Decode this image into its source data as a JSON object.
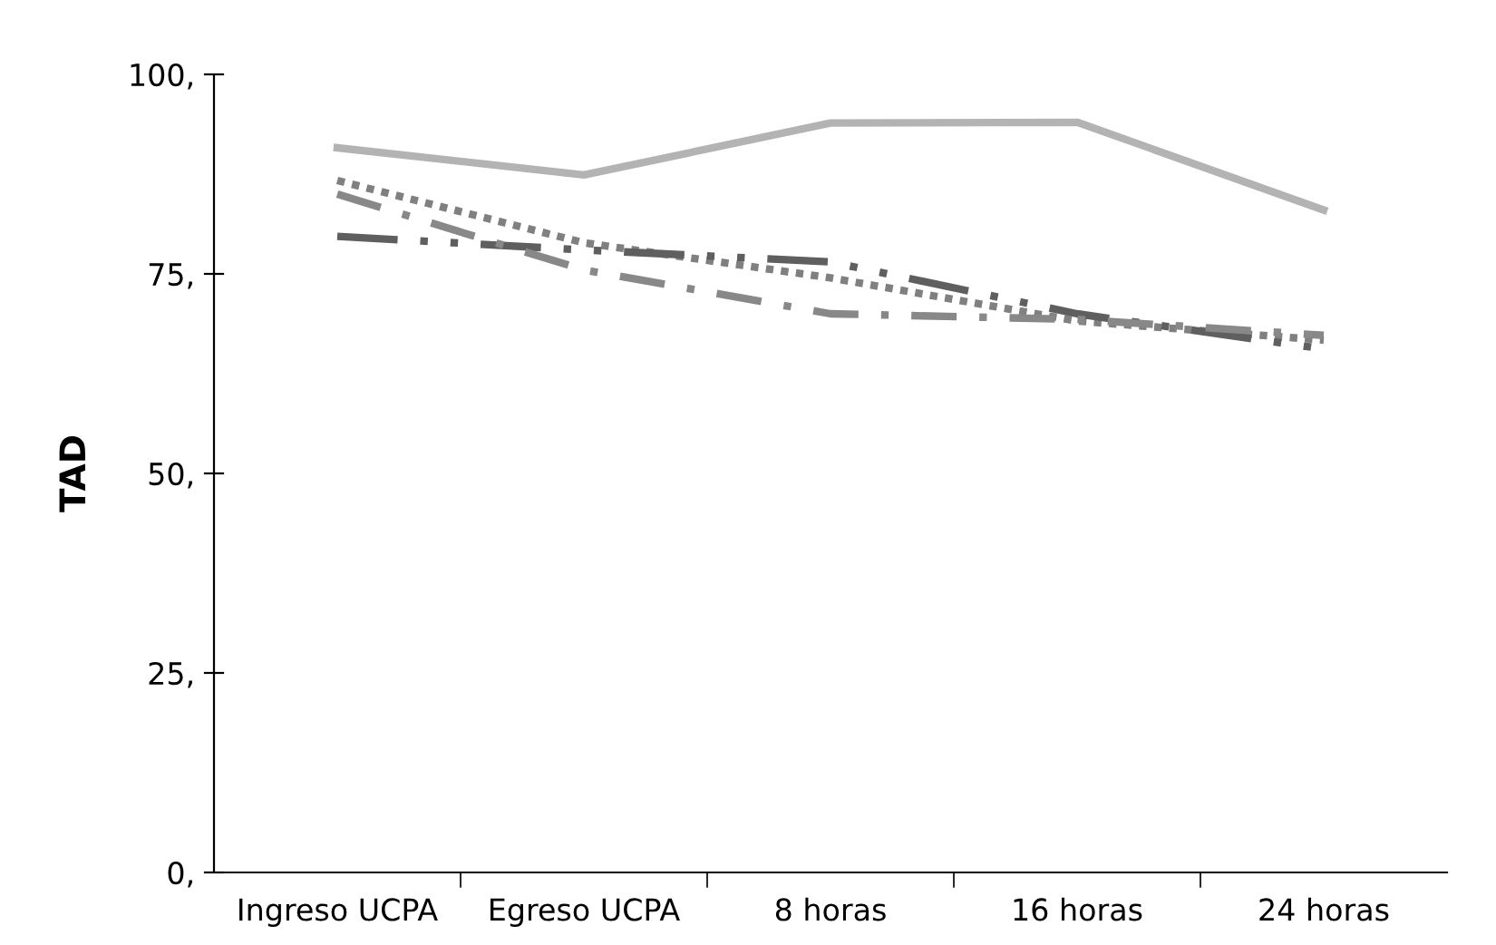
{
  "chart_data": {
    "type": "line",
    "ylabel": "TAD",
    "categories": [
      "Ingreso UCPA",
      "Egreso UCPA",
      "8 horas",
      "16 horas",
      "24 horas"
    ],
    "series": [
      {
        "color": "#b3b3b3",
        "line_style": "solid",
        "values": [
          90.8,
          87.4,
          93.9,
          94.0,
          83.0
        ]
      },
      {
        "color": "#808080",
        "line_style": "dotted",
        "values": [
          86.7,
          78.9,
          74.5,
          69.1,
          66.7
        ]
      },
      {
        "color": "#5f5f5f",
        "line_style": "dashdotdot",
        "values": [
          79.7,
          78.0,
          76.5,
          70.0,
          65.6
        ]
      },
      {
        "color": "#888888",
        "line_style": "dashdot",
        "values": [
          85.0,
          75.5,
          70.0,
          69.3,
          67.3
        ]
      }
    ],
    "ylim": [
      0,
      100
    ],
    "yticks": [
      {
        "value": 0,
        "label": "0,"
      },
      {
        "value": 25,
        "label": "25,"
      },
      {
        "value": 50,
        "label": "50,"
      },
      {
        "value": 75,
        "label": "75,"
      },
      {
        "value": 100,
        "label": "100,"
      }
    ],
    "grid": false,
    "marker": "none"
  }
}
